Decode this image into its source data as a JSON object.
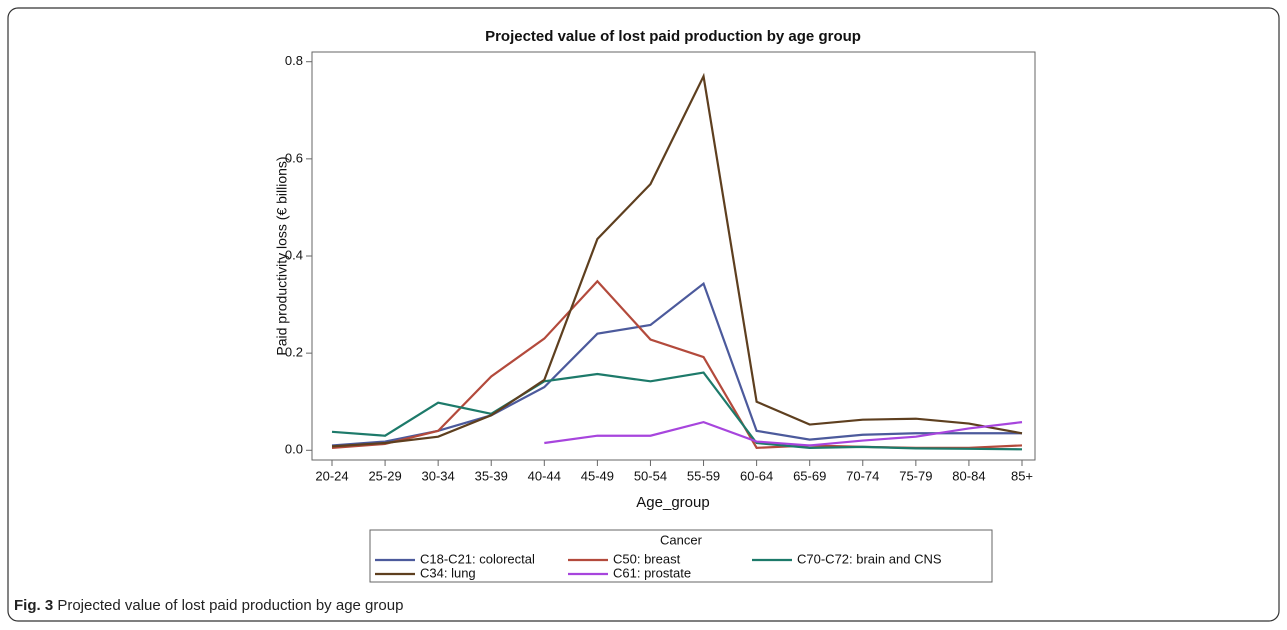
{
  "chart_data": {
    "type": "line",
    "title": "Projected value of lost paid production by age group",
    "x_label": "Age_group",
    "y_label": "Paid productivity loss (€ billions)",
    "categories": [
      "20-24",
      "25-29",
      "30-34",
      "35-39",
      "40-44",
      "45-49",
      "50-54",
      "55-59",
      "60-64",
      "65-69",
      "70-74",
      "75-79",
      "80-84",
      "85+"
    ],
    "ylim": [
      -0.02,
      0.82
    ],
    "yticks": [
      {
        "value": 0,
        "label": "0.0"
      },
      0.2,
      0.4,
      0.6,
      0.8
    ],
    "grid": false,
    "legend_title": "Cancer",
    "legend_position": "bottom",
    "series": [
      {
        "name": "C18-C21: colorectal",
        "color": "#4c5a9c",
        "values": [
          0.01,
          0.018,
          0.04,
          0.072,
          0.13,
          0.24,
          0.258,
          0.343,
          0.04,
          0.022,
          0.032,
          0.035,
          0.035,
          0.035
        ]
      },
      {
        "name": "C50: breast",
        "color": "#b34a3c",
        "values": [
          0.005,
          0.013,
          0.04,
          0.152,
          0.23,
          0.348,
          0.228,
          0.192,
          0.005,
          0.01,
          0.007,
          0.005,
          0.005,
          0.01
        ]
      },
      {
        "name": "C70-C72: brain and CNS",
        "color": "#1d7a6a",
        "values": [
          0.038,
          0.03,
          0.098,
          0.075,
          0.142,
          0.157,
          0.142,
          0.16,
          0.015,
          0.005,
          0.007,
          0.004,
          0.003,
          0.002
        ]
      },
      {
        "name": "C34: lung",
        "color": "#5e3f1f",
        "values": [
          0.008,
          0.015,
          0.028,
          0.072,
          0.145,
          0.435,
          0.548,
          0.77,
          0.1,
          0.053,
          0.063,
          0.065,
          0.055,
          0.035
        ]
      },
      {
        "name": "C61: prostate",
        "color": "#a745dd",
        "values": [
          null,
          null,
          null,
          null,
          0.015,
          0.03,
          0.03,
          0.058,
          0.018,
          0.01,
          0.02,
          0.028,
          0.045,
          0.058
        ]
      }
    ]
  },
  "caption": {
    "label": "Fig. 3",
    "text": "Projected value of lost paid production by age group"
  }
}
